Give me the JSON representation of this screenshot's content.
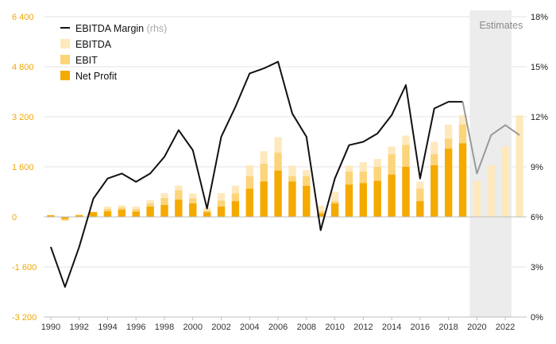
{
  "chart_data": {
    "type": "bar",
    "title": "",
    "xlabel": "",
    "ylabel": "",
    "ylim": [
      -3200,
      6400
    ],
    "y2lim": [
      0,
      18
    ],
    "left_ticks": [
      "6 400",
      "4 800",
      "3 200",
      "1 600",
      "0",
      "-1 600",
      "-3 200"
    ],
    "left_tick_values": [
      6400,
      4800,
      3200,
      1600,
      0,
      -1600,
      -3200
    ],
    "right_ticks": [
      "18%",
      "15%",
      "12%",
      "9%",
      "6%",
      "3%",
      "0%"
    ],
    "right_tick_values": [
      18,
      15,
      12,
      9,
      6,
      3,
      0
    ],
    "x_tick_labels": [
      "1990",
      "1992",
      "1994",
      "1996",
      "1998",
      "2000",
      "2002",
      "2004",
      "2006",
      "2008",
      "2010",
      "2012",
      "2014",
      "2016",
      "2018",
      "2020",
      "2022"
    ],
    "estimates_label": "Estimates",
    "estimates_start": 2019.5,
    "years": [
      1990,
      1991,
      1992,
      1993,
      1994,
      1995,
      1996,
      1997,
      1998,
      1999,
      2000,
      2001,
      2002,
      2003,
      2004,
      2005,
      2006,
      2007,
      2008,
      2009,
      2010,
      2011,
      2012,
      2013,
      2014,
      2015,
      2016,
      2017,
      2018,
      2019,
      2020,
      2021,
      2022,
      2023
    ],
    "series": [
      {
        "name": "EBITDA",
        "key": "ebitda",
        "color": "#fde9bd",
        "values": [
          60,
          -60,
          80,
          170,
          330,
          370,
          330,
          540,
          760,
          1000,
          750,
          300,
          760,
          1000,
          1650,
          2100,
          2550,
          1640,
          1500,
          360,
          800,
          1640,
          1750,
          1850,
          2250,
          2600,
          1130,
          2400,
          2950,
          3250,
          1150,
          1650,
          2250,
          3250
        ]
      },
      {
        "name": "EBIT",
        "key": "ebit",
        "color": "#fcd47a",
        "values": [
          60,
          -120,
          60,
          150,
          250,
          300,
          250,
          430,
          600,
          850,
          590,
          200,
          520,
          750,
          1300,
          1700,
          2050,
          1300,
          1300,
          180,
          500,
          1450,
          1450,
          1600,
          2000,
          2300,
          900,
          2000,
          2500,
          2950,
          null,
          null,
          null,
          null
        ]
      },
      {
        "name": "Net Profit",
        "key": "net",
        "color": "#f5aa00",
        "values": [
          50,
          -70,
          50,
          150,
          180,
          230,
          170,
          330,
          380,
          550,
          430,
          150,
          330,
          500,
          900,
          1130,
          1480,
          1130,
          990,
          110,
          430,
          1030,
          1080,
          1150,
          1350,
          1600,
          500,
          1650,
          2180,
          2350,
          null,
          null,
          null,
          null
        ]
      },
      {
        "name": "EBITDA Margin",
        "note": "(rhs)",
        "key": "margin",
        "color": "#111111",
        "est_color": "#9a9a9a",
        "values": [
          4.2,
          1.8,
          4.2,
          7.1,
          8.3,
          8.6,
          8.1,
          8.6,
          9.6,
          11.2,
          10.0,
          6.5,
          10.8,
          12.6,
          14.6,
          14.9,
          15.3,
          12.2,
          10.8,
          5.2,
          8.3,
          10.3,
          10.5,
          11.0,
          12.1,
          13.9,
          8.3,
          12.5,
          12.9,
          12.9,
          8.6,
          10.9,
          11.5,
          10.9
        ]
      }
    ],
    "legend_position": "top-left",
    "grid": true
  }
}
